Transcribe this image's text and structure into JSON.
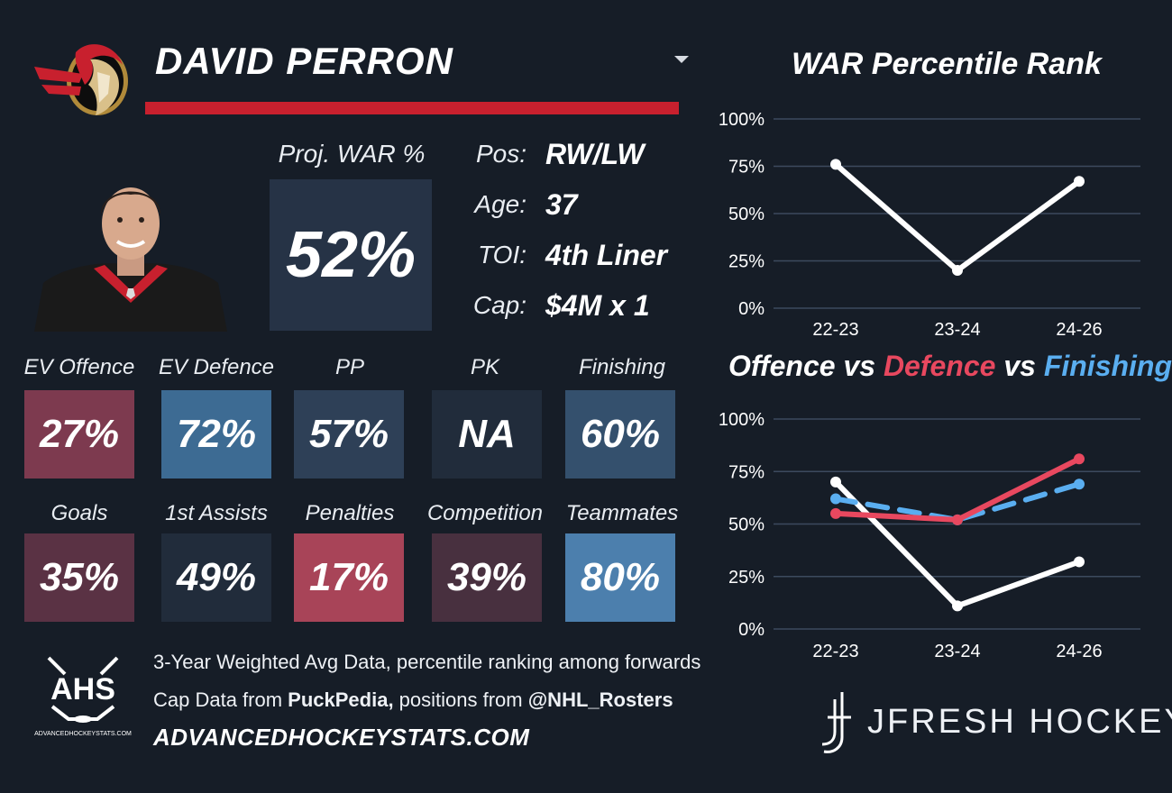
{
  "player": {
    "name": "DAVID PERRON"
  },
  "logo": {
    "team": "senators-logo",
    "brand_red": "#c8202e"
  },
  "projected_war": {
    "label": "Proj. WAR %",
    "value": "52%"
  },
  "info": [
    {
      "label": "Pos:",
      "value": "RW/LW"
    },
    {
      "label": "Age:",
      "value": "37"
    },
    {
      "label": "TOI:",
      "value": "4th Liner"
    },
    {
      "label": "Cap:",
      "value": "$4M x 1"
    }
  ],
  "tiles_row1": [
    {
      "label": "EV Offence",
      "value": "27%",
      "color": "#7d3a4f"
    },
    {
      "label": "EV Defence",
      "value": "72%",
      "color": "#3d6b93"
    },
    {
      "label": "PP",
      "value": "57%",
      "color": "#2e4057"
    },
    {
      "label": "PK",
      "value": "NA",
      "color": "#212c3b"
    },
    {
      "label": "Finishing",
      "value": "60%",
      "color": "#34506d"
    }
  ],
  "tiles_row2": [
    {
      "label": "Goals",
      "value": "35%",
      "color": "#5a3244"
    },
    {
      "label": "1st Assists",
      "value": "49%",
      "color": "#212c3b"
    },
    {
      "label": "Penalties",
      "value": "17%",
      "color": "#a84458"
    },
    {
      "label": "Competition",
      "value": "39%",
      "color": "#48303f"
    },
    {
      "label": "Teammates",
      "value": "80%",
      "color": "#4c7fad"
    }
  ],
  "footer": {
    "line1": "3-Year Weighted Avg Data, percentile ranking among forwards",
    "line2_a": "Cap Data from ",
    "line2_b": "PuckPedia,",
    "line2_c": " positions from ",
    "line2_d": "@NHL_Rosters",
    "site": "ADVANCEDHOCKEYSTATS.COM",
    "ahs_logo": "AHS",
    "ahs_sub": "ADVANCEDHOCKEYSTATS.COM",
    "brand": "JFRESH HOCKEY"
  },
  "titles": {
    "war_rank": "WAR Percentile Rank",
    "ovd_offence": "Offence",
    "ovd_vs1": " vs ",
    "ovd_defence": "Defence",
    "ovd_vs2": " vs ",
    "ovd_finishing": "Finishing",
    "offence_color": "#ffffff",
    "defence_color": "#e8485f",
    "finishing_color": "#5aaef0"
  },
  "chart_data": [
    {
      "type": "line",
      "title": "WAR Percentile Rank",
      "categories": [
        "22-23",
        "23-24",
        "24-26"
      ],
      "series": [
        {
          "name": "WAR",
          "values": [
            76,
            20,
            67
          ],
          "color": "#ffffff"
        }
      ],
      "ylim": [
        0,
        100
      ],
      "yticks": [
        "0%",
        "25%",
        "50%",
        "75%",
        "100%"
      ],
      "grid": true
    },
    {
      "type": "line",
      "title": "Offence vs Defence vs Finishing",
      "categories": [
        "22-23",
        "23-24",
        "24-26"
      ],
      "series": [
        {
          "name": "Offence",
          "values": [
            70,
            11,
            32
          ],
          "color": "#ffffff",
          "dash": false
        },
        {
          "name": "Finishing",
          "values": [
            62,
            52,
            69
          ],
          "color": "#5aaef0",
          "dash": true
        },
        {
          "name": "Defence",
          "values": [
            55,
            52,
            81
          ],
          "color": "#e8485f",
          "dash": false
        }
      ],
      "ylim": [
        0,
        100
      ],
      "yticks": [
        "0%",
        "25%",
        "50%",
        "75%",
        "100%"
      ],
      "grid": true
    }
  ]
}
